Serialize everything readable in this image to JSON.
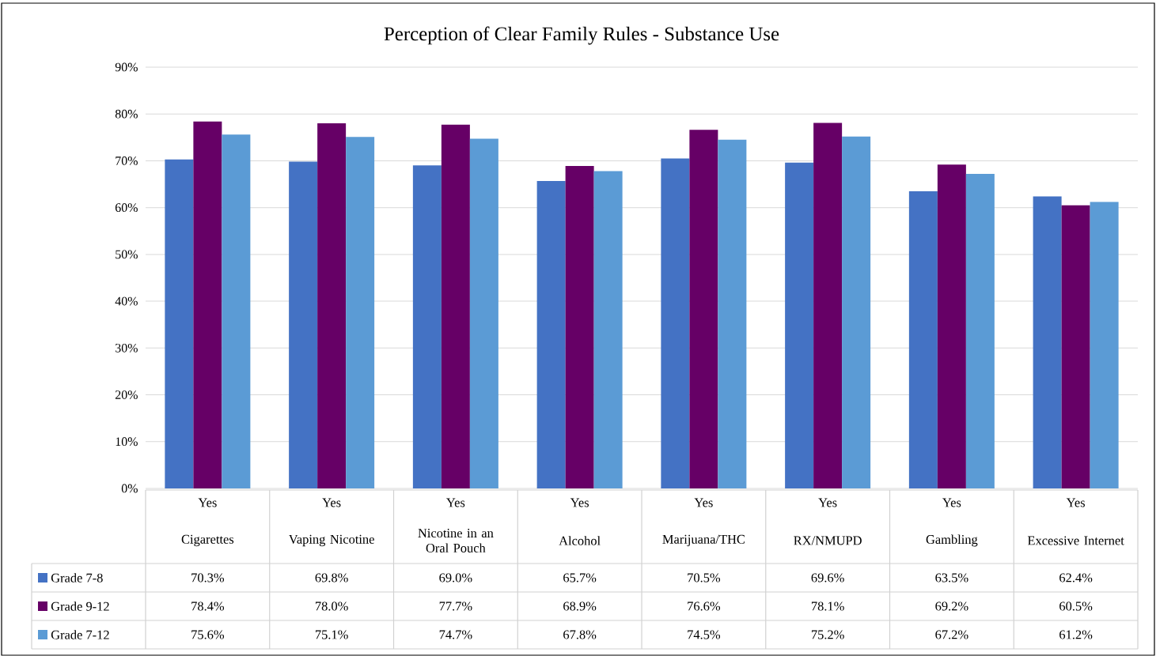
{
  "chart_data": {
    "type": "bar",
    "title": "Perception of Clear Family Rules - Substance Use",
    "categories": [
      "Cigarettes",
      "Vaping Nicotine",
      "Nicotine in an Oral Pouch",
      "Alcohol",
      "Marijuana/THC",
      "RX/NMUPD",
      "Gambling",
      "Excessive Internet"
    ],
    "annotations": [
      "Yes",
      "Yes",
      "Yes",
      "Yes",
      "Yes",
      "Yes",
      "Yes",
      "Yes"
    ],
    "series": [
      {
        "name": "Grade  7-8",
        "color": "#4472c4",
        "values": [
          70.3,
          69.8,
          69.0,
          65.7,
          70.5,
          69.6,
          63.5,
          62.4
        ],
        "value_labels": [
          "70.3%",
          "69.8%",
          "69.0%",
          "65.7%",
          "70.5%",
          "69.6%",
          "63.5%",
          "62.4%"
        ]
      },
      {
        "name": "Grade  9-12",
        "color": "#660066",
        "values": [
          78.4,
          78.0,
          77.7,
          68.9,
          76.6,
          78.1,
          69.2,
          60.5
        ],
        "value_labels": [
          "78.4%",
          "78.0%",
          "77.7%",
          "68.9%",
          "76.6%",
          "78.1%",
          "69.2%",
          "60.5%"
        ]
      },
      {
        "name": "Grade  7-12",
        "color": "#5b9bd5",
        "values": [
          75.6,
          75.1,
          74.7,
          67.8,
          74.5,
          75.2,
          67.2,
          61.2
        ],
        "value_labels": [
          "75.6%",
          "75.1%",
          "74.7%",
          "67.8%",
          "74.5%",
          "75.2%",
          "67.2%",
          "61.2%"
        ]
      }
    ],
    "ylim": [
      0,
      90
    ],
    "yticks": [
      {
        "value": 0,
        "label": "0%"
      },
      {
        "value": 10,
        "label": "10%"
      },
      {
        "value": 20,
        "label": "20%"
      },
      {
        "value": 30,
        "label": "30%"
      },
      {
        "value": 40,
        "label": "40%"
      },
      {
        "value": 50,
        "label": "50%"
      },
      {
        "value": 60,
        "label": "60%"
      },
      {
        "value": 70,
        "label": "70%"
      },
      {
        "value": 80,
        "label": "80%"
      },
      {
        "value": 90,
        "label": "90%"
      }
    ],
    "grid": "y",
    "legend": "bottom"
  }
}
